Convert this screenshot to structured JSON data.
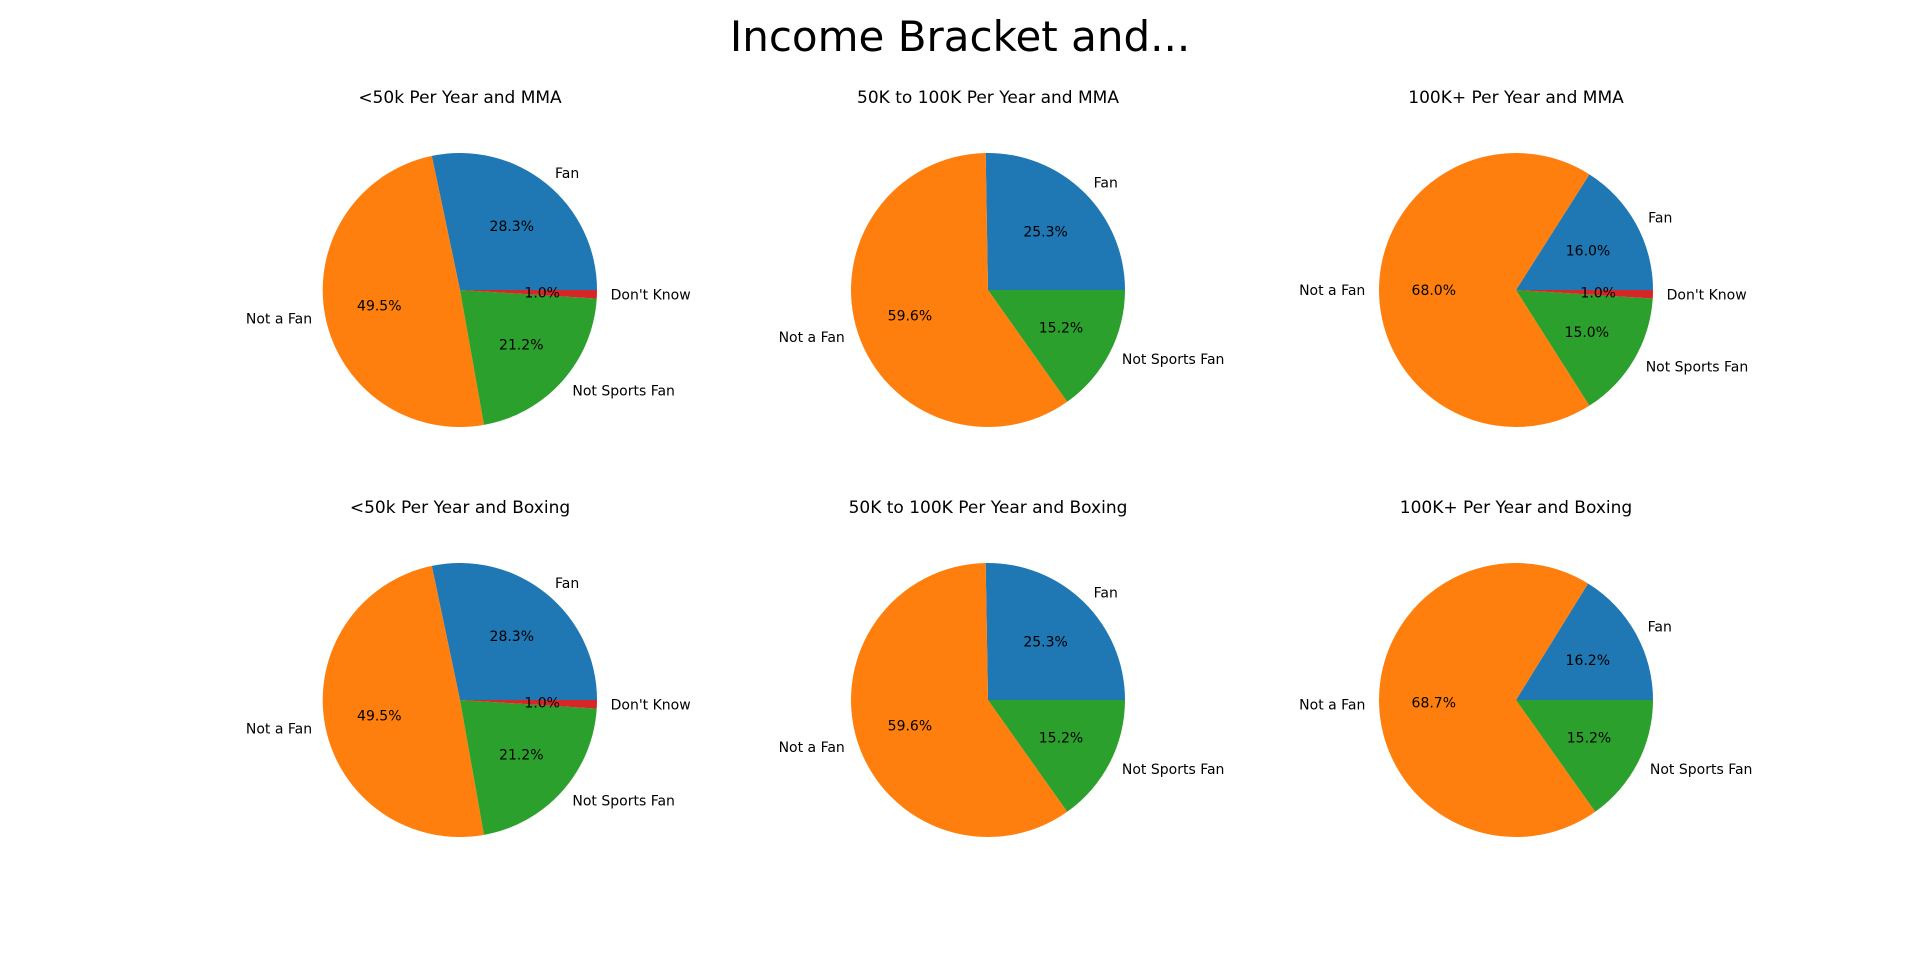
{
  "figure": {
    "title": "Income Bracket and..."
  },
  "colors": {
    "Fan": "#1f77b4",
    "Not a Fan": "#ff7f0e",
    "Not Sports Fan": "#2ca02c",
    "Don't Know": "#d62728"
  },
  "chart_data": [
    {
      "type": "pie",
      "title": "<50k Per Year and MMA",
      "labels": [
        "Fan",
        "Not a Fan",
        "Not Sports Fan",
        "Don't Know"
      ],
      "values": [
        28.3,
        49.5,
        21.2,
        1.0
      ],
      "pct_labels": [
        "28.3%",
        "49.5%",
        "21.2%",
        "1.0%"
      ]
    },
    {
      "type": "pie",
      "title": "50K to 100K Per Year and MMA",
      "labels": [
        "Fan",
        "Not a Fan",
        "Not Sports Fan"
      ],
      "values": [
        25.3,
        59.6,
        15.2
      ],
      "pct_labels": [
        "25.3%",
        "59.6%",
        "15.2%"
      ]
    },
    {
      "type": "pie",
      "title": "100K+ Per Year and MMA",
      "labels": [
        "Fan",
        "Not a Fan",
        "Not Sports Fan",
        "Don't Know"
      ],
      "values": [
        16.0,
        68.0,
        15.0,
        1.0
      ],
      "pct_labels": [
        "16.0%",
        "68.0%",
        "15.0%",
        "1.0%"
      ]
    },
    {
      "type": "pie",
      "title": "<50k Per Year and Boxing",
      "labels": [
        "Fan",
        "Not a Fan",
        "Not Sports Fan",
        "Don't Know"
      ],
      "values": [
        28.3,
        49.5,
        21.2,
        1.0
      ],
      "pct_labels": [
        "28.3%",
        "49.5%",
        "21.2%",
        "1.0%"
      ]
    },
    {
      "type": "pie",
      "title": "50K to 100K Per Year and Boxing",
      "labels": [
        "Fan",
        "Not a Fan",
        "Not Sports Fan"
      ],
      "values": [
        25.3,
        59.6,
        15.2
      ],
      "pct_labels": [
        "25.3%",
        "59.6%",
        "15.2%"
      ]
    },
    {
      "type": "pie",
      "title": "100K+ Per Year and Boxing",
      "labels": [
        "Fan",
        "Not a Fan",
        "Not Sports Fan"
      ],
      "values": [
        16.2,
        68.7,
        15.2
      ],
      "pct_labels": [
        "16.2%",
        "68.7%",
        "15.2%"
      ]
    }
  ]
}
